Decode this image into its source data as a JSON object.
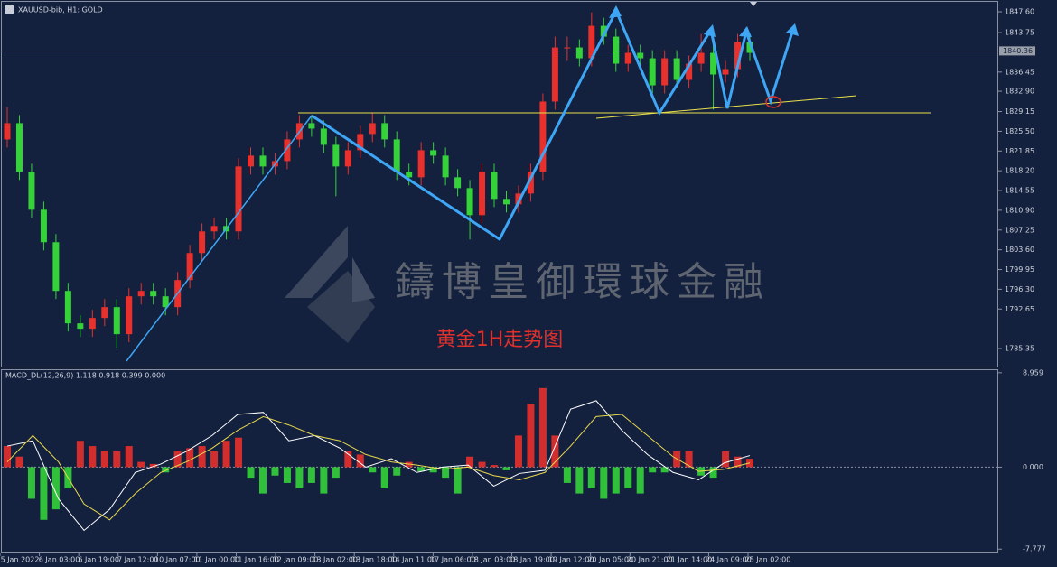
{
  "chart_data": [
    {
      "type": "candlestick",
      "title": "XAUUSD-bib, H1:  GOLD",
      "annotation": "黄金1H走势图",
      "watermark": "鑄博皇御環球金融",
      "up_color": "#e8302c",
      "down_color": "#35d23a",
      "current_price": 1840.36,
      "open": [
        1824,
        1827,
        1818,
        1811,
        1805,
        1796,
        1790,
        1789,
        1791,
        1793,
        1788,
        1795,
        1796,
        1795,
        1793,
        1798,
        1803,
        1807,
        1808,
        1807,
        1819,
        1821,
        1819,
        1820,
        1824,
        1827,
        1826,
        1823,
        1819,
        1822,
        1825,
        1827,
        1824,
        1818,
        1817,
        1822,
        1821,
        1817,
        1815,
        1810,
        1818,
        1813,
        1812,
        1814,
        1818,
        1831,
        1841,
        1841,
        1839,
        1845,
        1843,
        1838,
        1840,
        1839,
        1834,
        1839,
        1835,
        1838,
        1840,
        1836,
        1837,
        1842
      ],
      "high": [
        1830,
        1828.5,
        1819.5,
        1812.5,
        1806.5,
        1797.5,
        1791.5,
        1792.5,
        1794.5,
        1794.5,
        1796.5,
        1797.5,
        1797.5,
        1796.5,
        1799.5,
        1804.5,
        1808.5,
        1809.5,
        1809.5,
        1820.5,
        1822.5,
        1822.5,
        1821.5,
        1825.5,
        1828.5,
        1828.5,
        1827.5,
        1824.5,
        1823.5,
        1826.5,
        1829,
        1828.5,
        1825.5,
        1819.5,
        1823.5,
        1823.5,
        1822.5,
        1818.5,
        1816.5,
        1819.5,
        1819.5,
        1814.5,
        1815.5,
        1819.5,
        1832.5,
        1843,
        1843,
        1842.5,
        1847.5,
        1846.5,
        1844.5,
        1841.5,
        1841.5,
        1840.5,
        1840.5,
        1840.5,
        1839.5,
        1843.5,
        1841.5,
        1838.5,
        1843.5,
        1843.5
      ],
      "low": [
        1822.5,
        1816.5,
        1809.5,
        1803.5,
        1794.5,
        1788.5,
        1787.5,
        1787.5,
        1789.5,
        1785.5,
        1786.5,
        1793.5,
        1793.5,
        1791.5,
        1791.5,
        1796.5,
        1801.5,
        1805.5,
        1805.5,
        1805.5,
        1817.5,
        1817.5,
        1817.5,
        1818.5,
        1822.5,
        1824.5,
        1821.5,
        1813.5,
        1817.5,
        1820.5,
        1823.5,
        1822.5,
        1816.5,
        1815.5,
        1815.5,
        1819.5,
        1815.5,
        1813.5,
        1805.5,
        1808.5,
        1811.5,
        1810.5,
        1810.5,
        1812.5,
        1816.5,
        1829.5,
        1838.5,
        1837.5,
        1837.5,
        1841.5,
        1836.5,
        1836.5,
        1837.5,
        1832.5,
        1832.5,
        1833.5,
        1833.5,
        1836.5,
        1829.5,
        1834.5,
        1835.5,
        1838.5
      ],
      "close": [
        1827,
        1818,
        1811,
        1805,
        1796,
        1790,
        1789,
        1791,
        1793,
        1788,
        1795,
        1796,
        1795,
        1793,
        1798,
        1803,
        1807,
        1808,
        1807,
        1819,
        1821,
        1819,
        1820,
        1824,
        1827,
        1826,
        1823,
        1819,
        1822,
        1825,
        1827,
        1824,
        1818,
        1817,
        1822,
        1821,
        1817,
        1815,
        1810,
        1818,
        1813,
        1812,
        1814,
        1818,
        1831,
        1841,
        1841,
        1839,
        1845,
        1843,
        1838,
        1840,
        1839,
        1834,
        1839,
        1835,
        1838,
        1840,
        1836,
        1837,
        1842,
        1840
      ],
      "ylim": [
        1781.68,
        1849.77
      ],
      "yticks": [
        {
          "value": 1847.6,
          "label": "1847.60"
        },
        {
          "value": 1843.75,
          "label": "1843.75"
        },
        {
          "value": 1836.45,
          "label": "1836.45"
        },
        {
          "value": 1832.9,
          "label": "1832.90"
        },
        {
          "value": 1829.15,
          "label": "1829.15"
        },
        {
          "value": 1825.5,
          "label": "1825.50"
        },
        {
          "value": 1821.85,
          "label": "1821.85"
        },
        {
          "value": 1818.2,
          "label": "1818.20"
        },
        {
          "value": 1814.55,
          "label": "1814.55"
        },
        {
          "value": 1810.9,
          "label": "1810.90"
        },
        {
          "value": 1807.25,
          "label": "1807.25"
        },
        {
          "value": 1803.6,
          "label": "1803.60"
        },
        {
          "value": 1799.95,
          "label": "1799.95"
        },
        {
          "value": 1796.3,
          "label": "1796.30"
        },
        {
          "value": 1792.65,
          "label": "1792.65"
        },
        {
          "value": 1785.35,
          "label": "1785.35"
        }
      ],
      "x_labels": [
        "5 Jan 2022",
        "6 Jan 03:00",
        "6 Jan 19:00",
        "7 Jan 12:00",
        "10 Jan 07:00",
        "11 Jan 00:00",
        "11 Jan 16:00",
        "12 Jan 09:00",
        "13 Jan 02:00",
        "13 Jan 18:00",
        "14 Jan 11:00",
        "17 Jan 06:00",
        "18 Jan 03:00",
        "18 Jan 19:00",
        "19 Jan 12:00",
        "20 Jan 05:00",
        "20 Jan 21:00",
        "21 Jan 14:00",
        "24 Jan 09:00",
        "25 Jan 02:00"
      ]
    },
    {
      "type": "macd",
      "title": "MACD_DL(12,26,9) 1.118 0.918 0.399 0.000",
      "up_color": "#e8302c",
      "down_color": "#35d23a",
      "histogram": [
        2,
        1,
        -3,
        -5,
        -4,
        -2,
        2.5,
        2,
        1.5,
        1.5,
        2,
        0.5,
        0.3,
        -0.5,
        1.5,
        1.8,
        2,
        1.5,
        2.5,
        2.8,
        -1,
        -2.5,
        -0.8,
        -1.5,
        -2,
        -1.5,
        -2.5,
        -1,
        1.5,
        1.2,
        -0.5,
        -2,
        -0.8,
        0.5,
        -0.4,
        -0.5,
        -1,
        -2.5,
        1,
        0.5,
        0.2,
        -0.3,
        3,
        6,
        7.5,
        3,
        -1.5,
        -2.5,
        -2,
        -3,
        -2.5,
        -2,
        -2.5,
        -0.5,
        -0.5,
        1.5,
        1.5,
        -0.8,
        -1,
        1.5,
        1,
        0.8
      ],
      "lines": [
        {
          "color": "#ffffff",
          "values": [
            2,
            2.5,
            -3,
            -6,
            -4,
            -0.5,
            0.3,
            1.5,
            3,
            5,
            5.2,
            2.5,
            3,
            1.8,
            0,
            0.8,
            -0.5,
            0,
            0.2,
            -1.8,
            -0.6,
            -0.3,
            5.5,
            6.3,
            3.5,
            1.2,
            -0.5,
            -1.2,
            0.4,
            1.1
          ]
        },
        {
          "color": "#e8d84a",
          "values": [
            0.5,
            3,
            0.5,
            -3.5,
            -5,
            -2.5,
            -0.5,
            0.5,
            1.8,
            3.5,
            4.8,
            4,
            3,
            2.5,
            1.2,
            0.5,
            0.2,
            -0.2,
            0,
            -0.8,
            -1.2,
            -0.5,
            2,
            4.8,
            5,
            3,
            1,
            -0.4,
            -0.2,
            0.4
          ]
        }
      ],
      "ylim": [
        -8.1,
        9.2
      ],
      "yticks": [
        {
          "value": 8.959,
          "label": "8.959"
        },
        {
          "value": 0,
          "label": "0.000"
        },
        {
          "value": -7.777,
          "label": "-7.777"
        }
      ]
    }
  ]
}
